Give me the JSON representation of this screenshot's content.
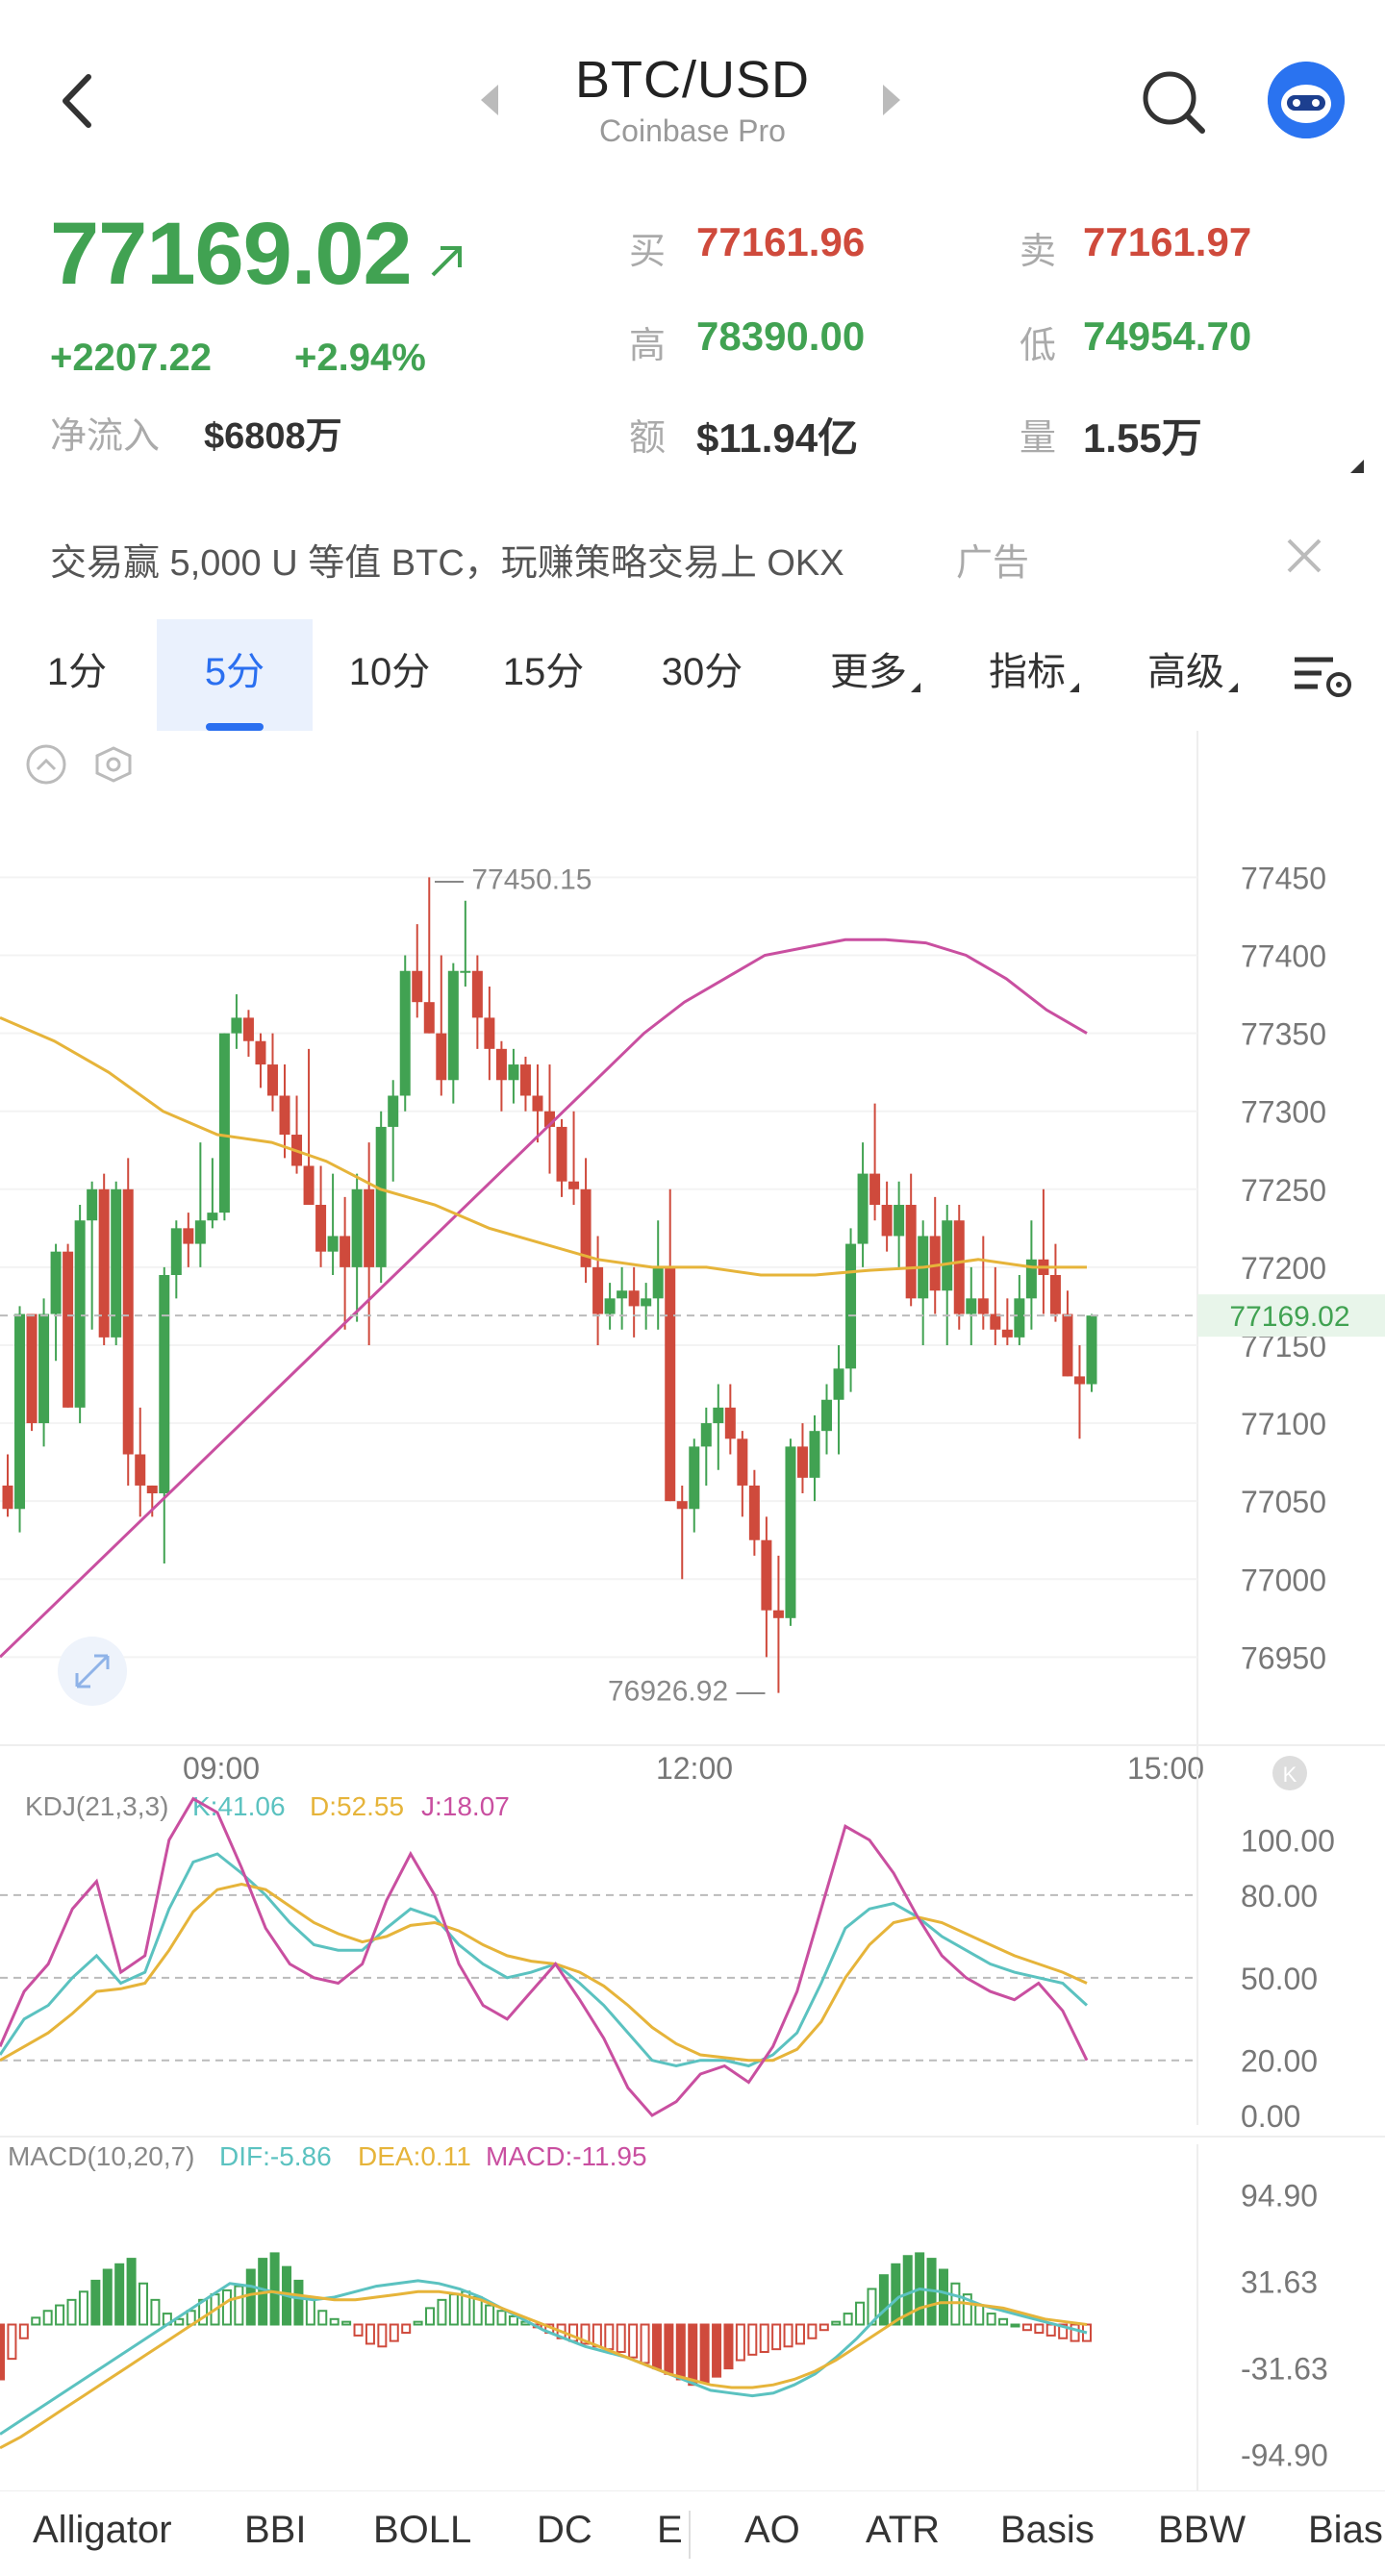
{
  "header": {
    "pair": "BTC/USD",
    "exchange": "Coinbase Pro",
    "icons": [
      "back-arrow-icon",
      "prev-triangle-icon",
      "next-triangle-icon",
      "search-icon",
      "robot-avatar-icon"
    ]
  },
  "stats": {
    "last_price": "77169.02",
    "change": "+2207.22",
    "change_pct": "+2.94%",
    "net_inflow_label": "净流入",
    "net_inflow_value": "$6808万",
    "bid_label": "买",
    "bid": "77161.96",
    "ask_label": "卖",
    "ask": "77161.97",
    "high_label": "高",
    "high": "78390.00",
    "low_label": "低",
    "low": "74954.70",
    "turnover_label": "额",
    "turnover": "$11.94亿",
    "volume_label": "量",
    "volume": "1.55万"
  },
  "ad": {
    "text": "交易赢 5,000 U 等值 BTC，玩赚策略交易上 OKX",
    "tag": "广告"
  },
  "tabs": [
    {
      "label": "1分",
      "active": false
    },
    {
      "label": "5分",
      "active": true
    },
    {
      "label": "10分",
      "active": false
    },
    {
      "label": "15分",
      "active": false
    },
    {
      "label": "30分",
      "active": false
    },
    {
      "label": "更多",
      "active": false,
      "dropdown": true
    },
    {
      "label": "指标",
      "active": false,
      "dropdown": true
    },
    {
      "label": "高级",
      "active": false,
      "dropdown": true
    }
  ],
  "colors": {
    "up": "#41a252",
    "down": "#cf4a3c",
    "accent": "#2a6ff0",
    "ma_pink": "#c94fa0",
    "ma_yellow": "#e6b43a",
    "k": "#5bc2c0",
    "d": "#e6b43a",
    "j": "#c94fa0"
  },
  "chart_data": [
    {
      "type": "candlestick",
      "y_ticks": [
        "77450",
        "77400",
        "77350",
        "77300",
        "77250",
        "77200",
        "77150",
        "77100",
        "77050",
        "77000",
        "76950"
      ],
      "x_ticks": [
        "09:00",
        "12:00",
        "15:00"
      ],
      "last_price_tag": "77169.02",
      "max_label": "77450.15",
      "min_label": "76926.92",
      "ylim": [
        76920,
        77470
      ],
      "candles": [
        [
          77060,
          77080,
          77040,
          77045
        ],
        [
          77045,
          77175,
          77030,
          77170
        ],
        [
          77170,
          77170,
          77095,
          77100
        ],
        [
          77100,
          77180,
          77085,
          77170
        ],
        [
          77170,
          77215,
          77140,
          77210
        ],
        [
          77210,
          77215,
          77110,
          77110
        ],
        [
          77110,
          77240,
          77100,
          77230
        ],
        [
          77230,
          77255,
          77160,
          77250
        ],
        [
          77250,
          77260,
          77150,
          77155
        ],
        [
          77155,
          77255,
          77150,
          77250
        ],
        [
          77250,
          77270,
          77060,
          77080
        ],
        [
          77080,
          77110,
          77040,
          77060
        ],
        [
          77060,
          77060,
          77040,
          77055
        ],
        [
          77055,
          77200,
          77010,
          77195
        ],
        [
          77195,
          77230,
          77180,
          77225
        ],
        [
          77225,
          77235,
          77200,
          77215
        ],
        [
          77215,
          77280,
          77200,
          77230
        ],
        [
          77230,
          77270,
          77225,
          77235
        ],
        [
          77235,
          77350,
          77230,
          77350
        ],
        [
          77350,
          77375,
          77340,
          77360
        ],
        [
          77360,
          77365,
          77335,
          77345
        ],
        [
          77345,
          77350,
          77315,
          77330
        ],
        [
          77330,
          77350,
          77300,
          77310
        ],
        [
          77310,
          77330,
          77270,
          77285
        ],
        [
          77285,
          77310,
          77260,
          77265
        ],
        [
          77265,
          77340,
          77240,
          77240
        ],
        [
          77240,
          77265,
          77200,
          77210
        ],
        [
          77210,
          77260,
          77195,
          77220
        ],
        [
          77220,
          77245,
          77160,
          77200
        ],
        [
          77200,
          77260,
          77165,
          77250
        ],
        [
          77250,
          77280,
          77150,
          77200
        ],
        [
          77200,
          77300,
          77190,
          77290
        ],
        [
          77290,
          77320,
          77255,
          77310
        ],
        [
          77310,
          77400,
          77300,
          77390
        ],
        [
          77390,
          77420,
          77360,
          77370
        ],
        [
          77370,
          77450,
          77350,
          77350
        ],
        [
          77350,
          77400,
          77310,
          77320
        ],
        [
          77320,
          77395,
          77305,
          77390
        ],
        [
          77390,
          77435,
          77380,
          77390
        ],
        [
          77390,
          77400,
          77340,
          77360
        ],
        [
          77360,
          77380,
          77320,
          77340
        ],
        [
          77340,
          77345,
          77300,
          77320
        ],
        [
          77320,
          77340,
          77305,
          77330
        ],
        [
          77330,
          77335,
          77300,
          77310
        ],
        [
          77310,
          77330,
          77280,
          77300
        ],
        [
          77300,
          77330,
          77260,
          77290
        ],
        [
          77290,
          77295,
          77245,
          77255
        ],
        [
          77255,
          77300,
          77240,
          77250
        ],
        [
          77250,
          77270,
          77190,
          77200
        ],
        [
          77200,
          77220,
          77150,
          77170
        ],
        [
          77170,
          77190,
          77160,
          77180
        ],
        [
          77180,
          77200,
          77160,
          77185
        ],
        [
          77185,
          77200,
          77155,
          77175
        ],
        [
          77175,
          77190,
          77160,
          77180
        ],
        [
          77180,
          77230,
          77160,
          77200
        ],
        [
          77200,
          77250,
          77050,
          77050
        ],
        [
          77050,
          77060,
          77000,
          77045
        ],
        [
          77045,
          77090,
          77030,
          77085
        ],
        [
          77085,
          77110,
          77060,
          77100
        ],
        [
          77100,
          77125,
          77070,
          77110
        ],
        [
          77110,
          77125,
          77080,
          77090
        ],
        [
          77090,
          77095,
          77040,
          77060
        ],
        [
          77060,
          77070,
          77015,
          77025
        ],
        [
          77025,
          77040,
          76950,
          76980
        ],
        [
          76980,
          77015,
          76927,
          76975
        ],
        [
          76975,
          77090,
          76970,
          77085
        ],
        [
          77085,
          77100,
          77055,
          77065
        ],
        [
          77065,
          77105,
          77050,
          77095
        ],
        [
          77095,
          77125,
          77080,
          77115
        ],
        [
          77115,
          77150,
          77080,
          77135
        ],
        [
          77135,
          77225,
          77120,
          77215
        ],
        [
          77215,
          77280,
          77200,
          77260
        ],
        [
          77260,
          77305,
          77230,
          77240
        ],
        [
          77240,
          77255,
          77210,
          77220
        ],
        [
          77220,
          77255,
          77200,
          77240
        ],
        [
          77240,
          77260,
          77175,
          77180
        ],
        [
          77180,
          77230,
          77150,
          77220
        ],
        [
          77220,
          77245,
          77170,
          77185
        ],
        [
          77185,
          77240,
          77150,
          77230
        ],
        [
          77230,
          77240,
          77160,
          77170
        ],
        [
          77170,
          77200,
          77150,
          77180
        ],
        [
          77180,
          77220,
          77160,
          77170
        ],
        [
          77170,
          77200,
          77150,
          77160
        ],
        [
          77160,
          77180,
          77150,
          77155
        ],
        [
          77155,
          77195,
          77150,
          77180
        ],
        [
          77180,
          77230,
          77160,
          77205
        ],
        [
          77205,
          77250,
          77170,
          77195
        ],
        [
          77195,
          77215,
          77165,
          77170
        ],
        [
          77170,
          77185,
          77130,
          77130
        ],
        [
          77130,
          77150,
          77090,
          77125
        ],
        [
          77125,
          77170,
          77120,
          77169
        ]
      ],
      "ma_pink": [
        76950,
        76975,
        77000,
        77025,
        77050,
        77075,
        77100,
        77125,
        77150,
        77175,
        77200,
        77225,
        77250,
        77275,
        77300,
        77325,
        77350,
        77370,
        77385,
        77400,
        77405,
        77410,
        77410,
        77408,
        77400,
        77385,
        77365,
        77350
      ],
      "ma_yellow": [
        77360,
        77345,
        77325,
        77300,
        77285,
        77280,
        77268,
        77250,
        77240,
        77225,
        77215,
        77205,
        77200,
        77200,
        77195,
        77195,
        77198,
        77200,
        77205,
        77200,
        77200
      ]
    },
    {
      "type": "line",
      "title": "KDJ(21,3,3)",
      "series": [
        {
          "name": "K",
          "label": "K:41.06"
        },
        {
          "name": "D",
          "label": "D:52.55"
        },
        {
          "name": "J",
          "label": "J:18.07"
        }
      ],
      "y_ticks": [
        "100.00",
        "80.00",
        "50.00",
        "20.00",
        "0.00"
      ],
      "ylim": [
        0,
        110
      ],
      "K": [
        22,
        35,
        40,
        50,
        58,
        48,
        52,
        75,
        92,
        95,
        88,
        80,
        70,
        62,
        60,
        60,
        68,
        75,
        72,
        62,
        55,
        50,
        52,
        55,
        48,
        40,
        30,
        20,
        18,
        20,
        20,
        18,
        22,
        30,
        48,
        68,
        75,
        77,
        72,
        65,
        60,
        55,
        52,
        50,
        48,
        40
      ],
      "D": [
        20,
        25,
        30,
        37,
        45,
        46,
        48,
        60,
        74,
        82,
        84,
        82,
        76,
        70,
        66,
        63,
        65,
        69,
        70,
        67,
        62,
        58,
        56,
        55,
        52,
        47,
        40,
        32,
        26,
        22,
        21,
        20,
        20,
        24,
        34,
        50,
        62,
        70,
        72,
        70,
        66,
        62,
        58,
        55,
        52,
        48
      ],
      "J": [
        25,
        45,
        55,
        75,
        85,
        52,
        58,
        100,
        115,
        110,
        90,
        68,
        55,
        50,
        48,
        55,
        78,
        95,
        80,
        55,
        40,
        35,
        45,
        55,
        42,
        28,
        10,
        0,
        5,
        15,
        18,
        12,
        25,
        45,
        75,
        105,
        100,
        88,
        72,
        58,
        50,
        45,
        42,
        48,
        38,
        20
      ]
    },
    {
      "type": "bar",
      "title": "MACD(10,20,7)",
      "series": [
        {
          "name": "DIF",
          "label": "DIF:-5.86"
        },
        {
          "name": "DEA",
          "label": "DEA:0.11"
        },
        {
          "name": "MACD",
          "label": "MACD:-11.95"
        }
      ],
      "y_ticks": [
        "94.90",
        "31.63",
        "-31.63",
        "-94.90"
      ],
      "ylim": [
        -100,
        100
      ],
      "hist": [
        -40,
        -25,
        -10,
        5,
        10,
        14,
        18,
        24,
        32,
        40,
        44,
        48,
        30,
        18,
        8,
        4,
        10,
        18,
        22,
        25,
        28,
        40,
        48,
        52,
        42,
        32,
        20,
        10,
        4,
        2,
        -8,
        -14,
        -16,
        -12,
        -6,
        2,
        12,
        18,
        22,
        24,
        20,
        14,
        10,
        6,
        2,
        -2,
        -6,
        -10,
        -12,
        -14,
        -16,
        -18,
        -20,
        -24,
        -28,
        -32,
        -36,
        -40,
        -44,
        -42,
        -38,
        -32,
        -26,
        -22,
        -20,
        -18,
        -16,
        -14,
        -10,
        -4,
        2,
        8,
        16,
        26,
        36,
        44,
        50,
        52,
        48,
        40,
        30,
        22,
        14,
        8,
        4,
        0,
        -4,
        -6,
        -8,
        -10,
        -12,
        -12
      ],
      "dif": [
        -80,
        -70,
        -60,
        -50,
        -40,
        -30,
        -20,
        -10,
        0,
        10,
        20,
        30,
        28,
        24,
        20,
        18,
        20,
        24,
        28,
        30,
        32,
        30,
        26,
        20,
        12,
        4,
        -4,
        -10,
        -16,
        -20,
        -24,
        -30,
        -36,
        -42,
        -48,
        -50,
        -52,
        -50,
        -44,
        -36,
        -24,
        -10,
        6,
        20,
        26,
        24,
        20,
        14,
        10,
        6,
        2,
        -2,
        -6
      ],
      "dea": [
        -90,
        -82,
        -72,
        -62,
        -52,
        -42,
        -32,
        -22,
        -12,
        -2,
        8,
        18,
        22,
        24,
        22,
        20,
        18,
        18,
        20,
        22,
        24,
        24,
        22,
        18,
        12,
        6,
        0,
        -6,
        -12,
        -18,
        -24,
        -30,
        -36,
        -40,
        -44,
        -46,
        -46,
        -44,
        -40,
        -34,
        -26,
        -16,
        -6,
        4,
        12,
        16,
        16,
        14,
        12,
        8,
        4,
        2,
        0
      ]
    }
  ],
  "indicator_bar": [
    "Alligator",
    "BBI",
    "BOLL",
    "DC",
    "E",
    "AO",
    "ATR",
    "Basis",
    "BBW",
    "Bias"
  ]
}
